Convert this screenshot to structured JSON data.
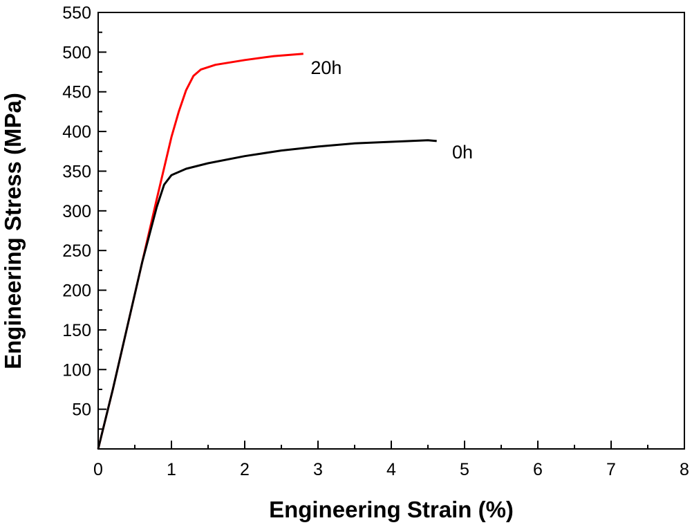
{
  "chart_data": {
    "type": "line",
    "title": "",
    "xlabel": "Engineering Strain (%)",
    "ylabel": "Engineering Stress (MPa)",
    "xlim": [
      0,
      8
    ],
    "ylim": [
      0,
      550
    ],
    "xticks": [
      "0",
      "1",
      "2",
      "3",
      "4",
      "5",
      "6",
      "7",
      "8"
    ],
    "yticks": [
      "50",
      "100",
      "150",
      "200",
      "250",
      "300",
      "350",
      "400",
      "450",
      "500",
      "550"
    ],
    "grid": false,
    "legend": "none (curves labeled directly)",
    "series": [
      {
        "name": "20h",
        "color": "#ff0000",
        "points": [
          [
            0,
            0
          ],
          [
            0.2,
            75
          ],
          [
            0.4,
            155
          ],
          [
            0.6,
            235
          ],
          [
            0.8,
            315
          ],
          [
            1.0,
            393
          ],
          [
            1.1,
            425
          ],
          [
            1.2,
            452
          ],
          [
            1.3,
            470
          ],
          [
            1.4,
            478
          ],
          [
            1.6,
            484
          ],
          [
            2.0,
            490
          ],
          [
            2.4,
            495
          ],
          [
            2.8,
            498
          ]
        ]
      },
      {
        "name": "0h",
        "color": "#000000",
        "points": [
          [
            0,
            0
          ],
          [
            0.2,
            75
          ],
          [
            0.4,
            155
          ],
          [
            0.6,
            235
          ],
          [
            0.8,
            305
          ],
          [
            0.9,
            333
          ],
          [
            1.0,
            345
          ],
          [
            1.2,
            353
          ],
          [
            1.5,
            360
          ],
          [
            2.0,
            369
          ],
          [
            2.5,
            376
          ],
          [
            3.0,
            381
          ],
          [
            3.5,
            385
          ],
          [
            4.0,
            387
          ],
          [
            4.5,
            389
          ],
          [
            4.62,
            388
          ]
        ]
      }
    ],
    "annotations": [
      {
        "text": "20h",
        "x": 2.9,
        "y": 481
      },
      {
        "text": "0h",
        "x": 4.83,
        "y": 375
      }
    ]
  }
}
